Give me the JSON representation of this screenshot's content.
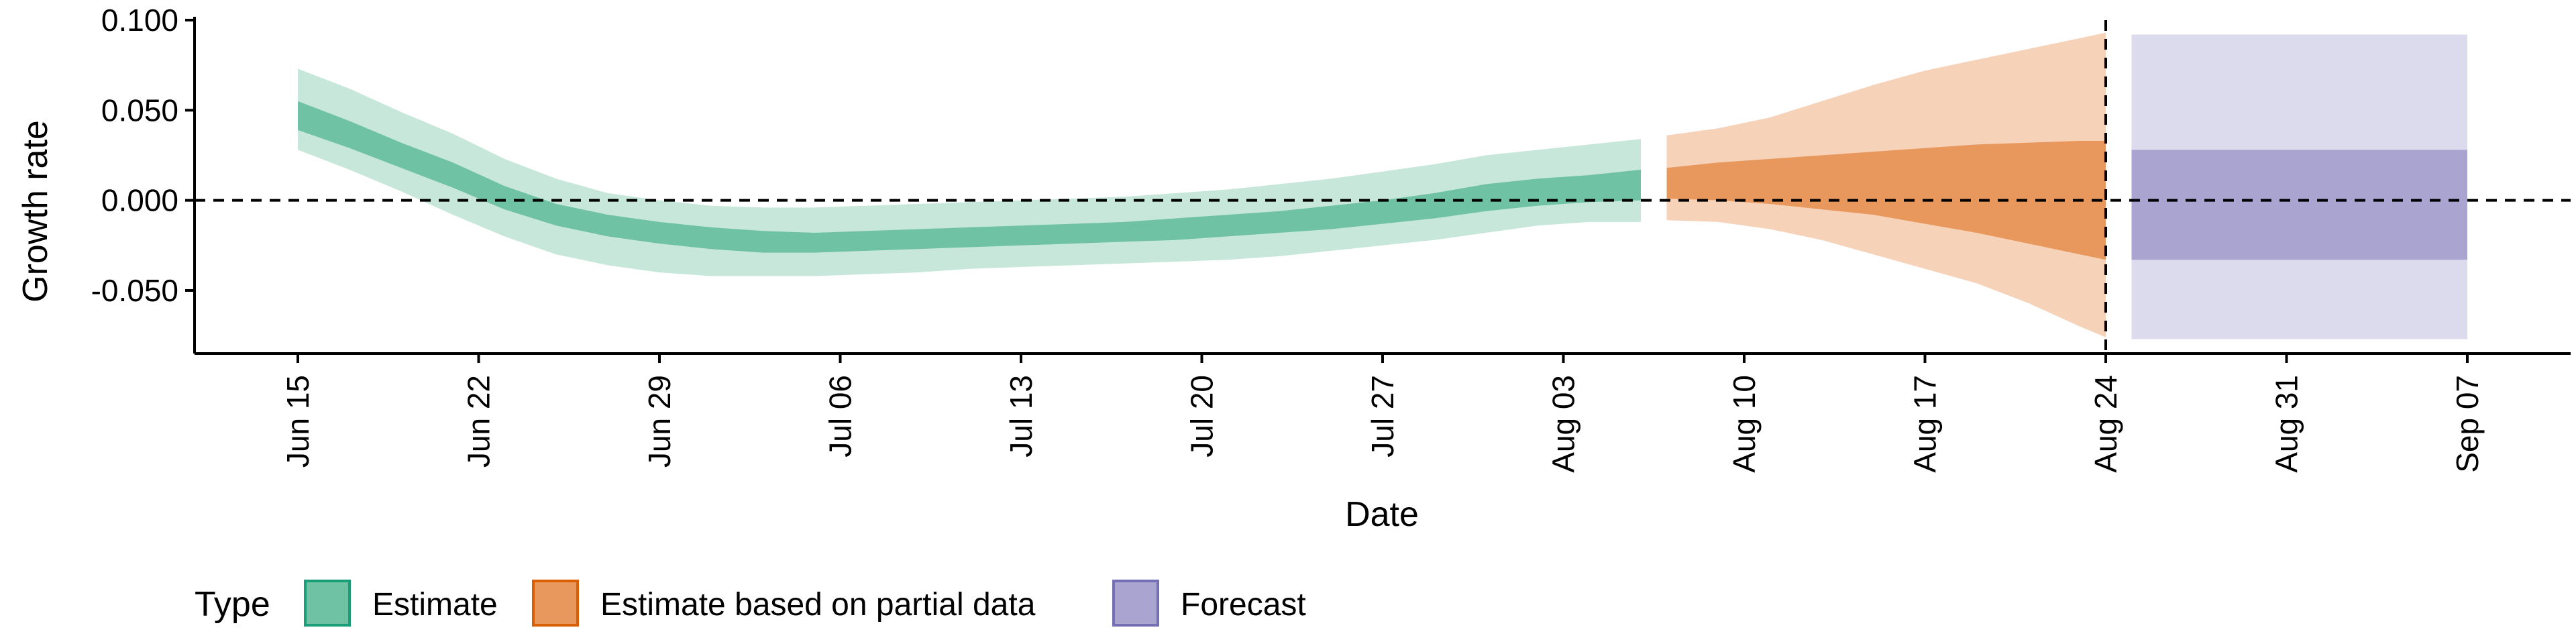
{
  "chart_data": {
    "type": "area",
    "xlabel": "Date",
    "ylabel": "Growth rate",
    "x_ticks": [
      {
        "date": "2020-06-15",
        "label": "Jun 15"
      },
      {
        "date": "2020-06-22",
        "label": "Jun 22"
      },
      {
        "date": "2020-06-29",
        "label": "Jun 29"
      },
      {
        "date": "2020-07-06",
        "label": "Jul 06"
      },
      {
        "date": "2020-07-13",
        "label": "Jul 13"
      },
      {
        "date": "2020-07-20",
        "label": "Jul 20"
      },
      {
        "date": "2020-07-27",
        "label": "Jul 27"
      },
      {
        "date": "2020-08-03",
        "label": "Aug 03"
      },
      {
        "date": "2020-08-10",
        "label": "Aug 10"
      },
      {
        "date": "2020-08-17",
        "label": "Aug 17"
      },
      {
        "date": "2020-08-24",
        "label": "Aug 24"
      },
      {
        "date": "2020-08-31",
        "label": "Aug 31"
      },
      {
        "date": "2020-09-07",
        "label": "Sep 07"
      }
    ],
    "y_ticks": [
      {
        "value": 0.1,
        "label": "0.100"
      },
      {
        "value": 0.05,
        "label": "0.050"
      },
      {
        "value": 0.0,
        "label": "0.000"
      },
      {
        "value": -0.05,
        "label": "-0.050"
      }
    ],
    "xlim": [
      "2020-06-11",
      "2020-09-11"
    ],
    "ylim": [
      -0.085,
      0.1
    ],
    "reference_lines": [
      {
        "axis": "y",
        "value": 0.0,
        "style": "dashed"
      },
      {
        "axis": "x",
        "date": "2020-08-24",
        "style": "dashed"
      }
    ],
    "legend": {
      "title": "Type",
      "placement": "bottom-left",
      "entries": [
        {
          "label": "Estimate",
          "fill": "#6fc2a4",
          "border": "#1b9e77"
        },
        {
          "label": "Estimate based on partial data",
          "fill": "#e8985c",
          "border": "#d95f02"
        },
        {
          "label": "Forecast",
          "fill": "#a9a4d0",
          "border": "#7570b3"
        }
      ]
    },
    "series": [
      {
        "name": "Estimate",
        "color_inner": "#6fc2a4",
        "color_outer": "#c7e7da",
        "x": [
          "2020-06-15",
          "2020-06-17",
          "2020-06-19",
          "2020-06-21",
          "2020-06-23",
          "2020-06-25",
          "2020-06-27",
          "2020-06-29",
          "2020-07-01",
          "2020-07-03",
          "2020-07-05",
          "2020-07-07",
          "2020-07-09",
          "2020-07-11",
          "2020-07-13",
          "2020-07-15",
          "2020-07-17",
          "2020-07-19",
          "2020-07-21",
          "2020-07-23",
          "2020-07-25",
          "2020-07-27",
          "2020-07-29",
          "2020-07-31",
          "2020-08-02",
          "2020-08-04",
          "2020-08-06"
        ],
        "lower_outer": [
          0.028,
          0.017,
          0.005,
          -0.008,
          -0.02,
          -0.03,
          -0.036,
          -0.04,
          -0.042,
          -0.042,
          -0.042,
          -0.041,
          -0.04,
          -0.038,
          -0.037,
          -0.036,
          -0.035,
          -0.034,
          -0.033,
          -0.031,
          -0.028,
          -0.025,
          -0.022,
          -0.018,
          -0.014,
          -0.012,
          -0.012
        ],
        "lower_inner": [
          0.039,
          0.029,
          0.018,
          0.007,
          -0.005,
          -0.014,
          -0.02,
          -0.024,
          -0.027,
          -0.029,
          -0.029,
          -0.028,
          -0.027,
          -0.026,
          -0.025,
          -0.024,
          -0.023,
          -0.022,
          -0.02,
          -0.018,
          -0.016,
          -0.013,
          -0.01,
          -0.006,
          -0.003,
          -0.001,
          0.0
        ],
        "upper_inner": [
          0.055,
          0.044,
          0.032,
          0.021,
          0.008,
          -0.002,
          -0.008,
          -0.012,
          -0.015,
          -0.017,
          -0.018,
          -0.017,
          -0.016,
          -0.015,
          -0.014,
          -0.013,
          -0.012,
          -0.01,
          -0.008,
          -0.006,
          -0.003,
          0.0,
          0.004,
          0.009,
          0.012,
          0.014,
          0.017
        ],
        "upper_outer": [
          0.073,
          0.062,
          0.049,
          0.037,
          0.023,
          0.012,
          0.004,
          0.0,
          -0.003,
          -0.004,
          -0.004,
          -0.003,
          -0.002,
          -0.001,
          0.0,
          0.001,
          0.002,
          0.004,
          0.006,
          0.009,
          0.012,
          0.016,
          0.02,
          0.025,
          0.028,
          0.031,
          0.034
        ]
      },
      {
        "name": "Estimate based on partial data",
        "color_inner": "#e8985c",
        "color_outer": "#f6d2b9",
        "x": [
          "2020-08-07",
          "2020-08-09",
          "2020-08-11",
          "2020-08-13",
          "2020-08-15",
          "2020-08-17",
          "2020-08-19",
          "2020-08-21",
          "2020-08-23",
          "2020-08-24"
        ],
        "lower_outer": [
          -0.011,
          -0.012,
          -0.016,
          -0.022,
          -0.03,
          -0.038,
          -0.046,
          -0.057,
          -0.07,
          -0.076
        ],
        "lower_inner": [
          0.001,
          0.0,
          -0.002,
          -0.005,
          -0.008,
          -0.013,
          -0.018,
          -0.024,
          -0.03,
          -0.033
        ],
        "upper_inner": [
          0.018,
          0.021,
          0.023,
          0.025,
          0.027,
          0.029,
          0.031,
          0.032,
          0.033,
          0.033
        ],
        "upper_outer": [
          0.036,
          0.04,
          0.046,
          0.055,
          0.064,
          0.072,
          0.078,
          0.084,
          0.09,
          0.093
        ]
      },
      {
        "name": "Forecast",
        "color_inner": "#a9a4d0",
        "color_outer": "#dcdaed",
        "x": [
          "2020-08-25",
          "2020-09-07"
        ],
        "lower_outer": [
          -0.077,
          -0.077
        ],
        "lower_inner": [
          -0.033,
          -0.033
        ],
        "upper_inner": [
          0.028,
          0.028
        ],
        "upper_outer": [
          0.092,
          0.092
        ]
      }
    ]
  }
}
